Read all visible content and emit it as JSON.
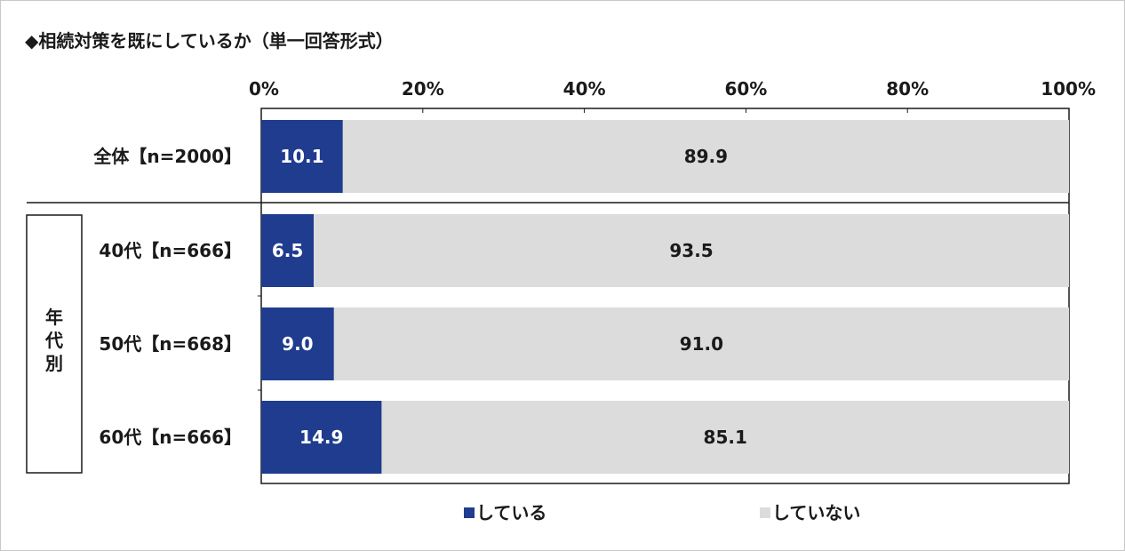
{
  "chart_data": {
    "type": "bar",
    "orientation": "horizontal",
    "stacked": true,
    "title": "◆相続対策を既にしているか（単一回答形式）",
    "xlim": [
      0,
      100
    ],
    "x_ticks": [
      "0%",
      "20%",
      "40%",
      "60%",
      "80%",
      "100%"
    ],
    "categories": [
      "全体【n=2000】",
      "40代【n=666】",
      "50代【n=668】",
      "60代【n=666】"
    ],
    "group_label": "年代別",
    "series": [
      {
        "name": "している",
        "color": "#1f3c8f",
        "label_color": "#ffffff",
        "values": [
          10.1,
          6.5,
          9.0,
          14.9
        ],
        "labels": [
          "10.1",
          "6.5",
          "9.0",
          "14.9"
        ]
      },
      {
        "name": "していない",
        "color": "#dcdcdc",
        "label_color": "#1a1a1a",
        "values": [
          89.9,
          93.5,
          91.0,
          85.1
        ],
        "labels": [
          "89.9",
          "93.5",
          "91.0",
          "85.1"
        ]
      }
    ],
    "legend_position": "bottom",
    "grid": false
  }
}
